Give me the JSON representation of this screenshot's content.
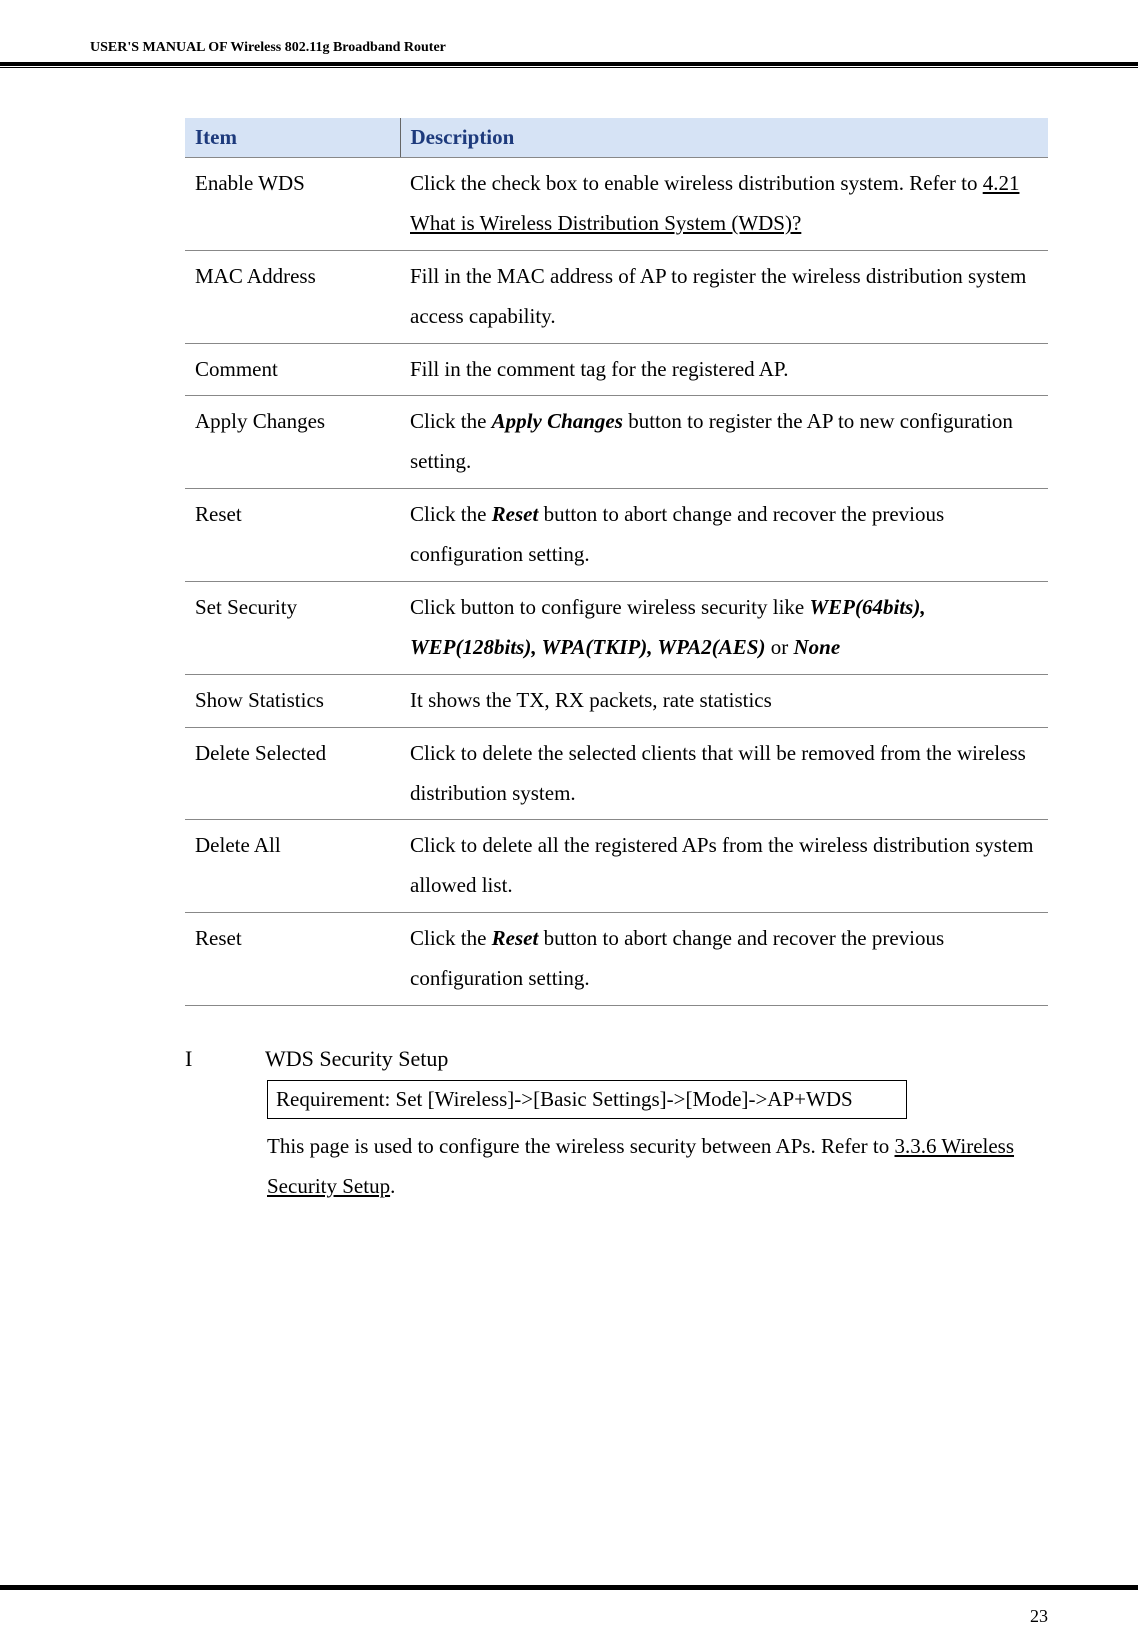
{
  "header": {
    "title": "USER'S MANUAL OF Wireless 802.11g Broadband Router"
  },
  "table": {
    "headers": {
      "item": "Item",
      "description": "Description"
    },
    "rows": [
      {
        "item": "Enable WDS",
        "desc_prefix": "Click the check box to enable wireless distribution system. Refer to ",
        "desc_link": "4.21 What is Wireless Distribution System (WDS)?",
        "desc_suffix": ""
      },
      {
        "item": "MAC Address",
        "desc_plain": "Fill in the MAC address of AP to register the wireless distribution system access capability."
      },
      {
        "item": "Comment",
        "desc_plain": "Fill in the comment tag for the registered AP."
      },
      {
        "item": "Apply Changes",
        "desc_prefix": "Click the ",
        "desc_bolditalic": "Apply Changes",
        "desc_suffix": " button to register the AP to new configuration setting."
      },
      {
        "item": "Reset",
        "desc_prefix": "Click the ",
        "desc_bolditalic": "Reset",
        "desc_suffix": " button to abort change and recover the previous configuration setting."
      },
      {
        "item": "Set Security",
        "desc_prefix": "Click button to configure wireless security like ",
        "desc_bolditalic": "WEP(64bits), WEP(128bits), WPA(TKIP), WPA2(AES)",
        "desc_mid": " or ",
        "desc_bolditalic2": "None",
        "desc_suffix": ""
      },
      {
        "item": "Show Statistics",
        "desc_plain": "It shows the TX, RX packets, rate statistics"
      },
      {
        "item": "Delete Selected",
        "desc_plain": "Click to delete the selected clients that will be removed from the wireless distribution system."
      },
      {
        "item": "Delete All",
        "desc_plain": "Click to delete all the registered APs from the wireless distribution system allowed list."
      },
      {
        "item": "Reset",
        "desc_prefix": "Click the ",
        "desc_bolditalic": "Reset",
        "desc_suffix": " button to abort change and recover the previous configuration setting."
      }
    ]
  },
  "section": {
    "marker": "I",
    "title": "WDS Security Setup",
    "requirement": "Requirement: Set [Wireless]->[Basic Settings]->[Mode]->AP+WDS",
    "body_prefix": "This page is used to configure the wireless security between APs. Refer to ",
    "body_link": "3.3.6 Wireless Security Setup",
    "body_suffix": "."
  },
  "footer": {
    "page_number": "23"
  }
}
